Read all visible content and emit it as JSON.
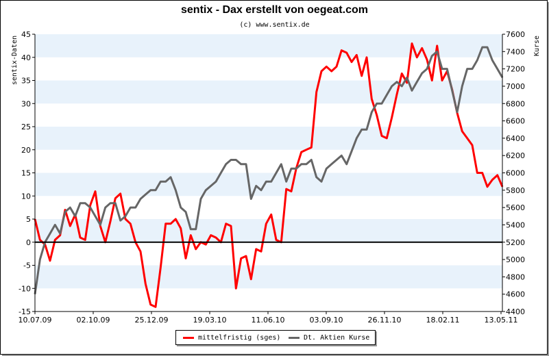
{
  "chart_data": {
    "type": "line",
    "title": "sentix - Dax erstellt von oegeat.com",
    "subtitle": "(c) www.sentix.de",
    "ylabel": "sentix-Daten",
    "y2label": "Kurse",
    "ylim": [
      -15,
      45
    ],
    "y2lim": [
      4400,
      7600
    ],
    "yticks": [
      45,
      40,
      35,
      30,
      25,
      20,
      15,
      10,
      5,
      0,
      -5,
      -10,
      -15
    ],
    "y2ticks": [
      7600,
      7400,
      7200,
      7000,
      6800,
      6600,
      6400,
      6200,
      6000,
      5800,
      5600,
      5400,
      5200,
      5000,
      4800,
      4600,
      4400
    ],
    "xticks": [
      "10.07.09",
      "02.10.09",
      "25.12.09",
      "19.03.10",
      "11.06.10",
      "03.09.10",
      "26.11.10",
      "18.02.11",
      "13.05.11"
    ],
    "grid": "horizontal bands",
    "legend_position": "bottom",
    "colors": {
      "band": "#e8f2fb",
      "series1": "#ff0000",
      "series2": "#666666",
      "zero_line": "#000000"
    },
    "series": [
      {
        "name": "mittelfristig (sges)",
        "axis": "left",
        "values": [
          5,
          0.5,
          -0.5,
          -4,
          0.5,
          1.5,
          7,
          3.5,
          6,
          1,
          0.5,
          8,
          11,
          3.5,
          0,
          4.5,
          9.5,
          10.5,
          5,
          4,
          0,
          -2,
          -9,
          -13.5,
          -14,
          -5.5,
          4,
          4,
          5,
          3,
          -3.5,
          1.5,
          -1.5,
          0,
          -0.5,
          1.5,
          1,
          0,
          4,
          3.5,
          -10,
          -3.5,
          -3,
          -8,
          -1.5,
          -2,
          4,
          6,
          0.5,
          0,
          11.5,
          11,
          16,
          19.5,
          20,
          20.5,
          32.5,
          37,
          38,
          37,
          38,
          41.5,
          41,
          39,
          40.5,
          36,
          40,
          31,
          27.5,
          23,
          22.5,
          27,
          32,
          36.5,
          34.5,
          43,
          40,
          42,
          39.5,
          35,
          42.5,
          35,
          37,
          33,
          28,
          24,
          22.5,
          21,
          15,
          15,
          12,
          13.5,
          14.5,
          12
        ]
      },
      {
        "name": "Dt. Aktien Kurse",
        "axis": "right",
        "values": [
          4600,
          5000,
          5200,
          5300,
          5400,
          5300,
          5550,
          5600,
          5500,
          5650,
          5650,
          5600,
          5500,
          5400,
          5600,
          5650,
          5650,
          5450,
          5500,
          5600,
          5600,
          5700,
          5750,
          5800,
          5800,
          5900,
          5900,
          5950,
          5800,
          5600,
          5550,
          5350,
          5350,
          5700,
          5800,
          5850,
          5900,
          6000,
          6100,
          6150,
          6150,
          6100,
          6100,
          5700,
          5850,
          5800,
          5900,
          5900,
          6000,
          6100,
          5900,
          6050,
          6050,
          6100,
          6100,
          6150,
          5950,
          5900,
          6050,
          6100,
          6150,
          6200,
          6100,
          6250,
          6400,
          6500,
          6500,
          6700,
          6800,
          6800,
          6900,
          7000,
          7050,
          7000,
          7100,
          6950,
          7050,
          7150,
          7200,
          7350,
          7400,
          7200,
          7200,
          6950,
          6700,
          7000,
          7200,
          7200,
          7300,
          7450,
          7450,
          7300,
          7200,
          7100
        ]
      }
    ]
  },
  "legend": {
    "series1_label": "mittelfristig (sges)",
    "series2_label": "Dt. Aktien Kurse"
  }
}
